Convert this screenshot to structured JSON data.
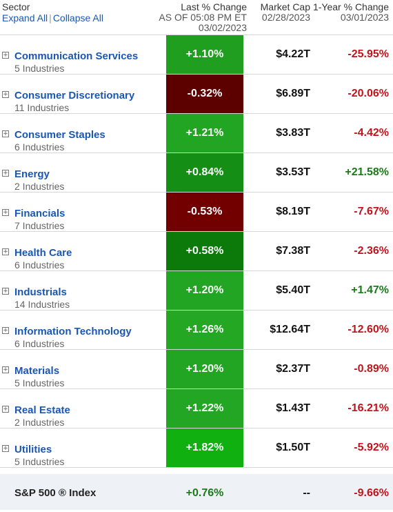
{
  "header": {
    "sector_title": "Sector",
    "expand_all": "Expand All",
    "collapse_all": "Collapse All",
    "change_title": "Last % Change",
    "change_asof": "AS OF 05:08 PM ET",
    "change_date": "03/02/2023",
    "mcap_title": "Market Cap",
    "mcap_date": "02/28/2023",
    "year_title": "1-Year % Change",
    "year_date": "03/01/2023"
  },
  "colors": {
    "link": "#1a56b4",
    "negative_text": "#c0131b",
    "positive_text": "#1a7a1a"
  },
  "rows": [
    {
      "name": "Communication Services",
      "industries": "5 Industries",
      "change": "+1.10%",
      "change_color": "#1f9e1f",
      "mcap": "$4.22T",
      "year": "-25.95%",
      "year_sign": "neg"
    },
    {
      "name": "Consumer Discretionary",
      "industries": "11 Industries",
      "change": "-0.32%",
      "change_color": "#5c0000",
      "mcap": "$6.89T",
      "year": "-20.06%",
      "year_sign": "neg"
    },
    {
      "name": "Consumer Staples",
      "industries": "6 Industries",
      "change": "+1.21%",
      "change_color": "#22a522",
      "mcap": "$3.83T",
      "year": "-4.42%",
      "year_sign": "neg"
    },
    {
      "name": "Energy",
      "industries": "2 Industries",
      "change": "+0.84%",
      "change_color": "#158e15",
      "mcap": "$3.53T",
      "year": "+21.58%",
      "year_sign": "pos"
    },
    {
      "name": "Financials",
      "industries": "7 Industries",
      "change": "-0.53%",
      "change_color": "#720000",
      "mcap": "$8.19T",
      "year": "-7.67%",
      "year_sign": "neg"
    },
    {
      "name": "Health Care",
      "industries": "6 Industries",
      "change": "+0.58%",
      "change_color": "#0b7a0b",
      "mcap": "$7.38T",
      "year": "-2.36%",
      "year_sign": "neg"
    },
    {
      "name": "Industrials",
      "industries": "14 Industries",
      "change": "+1.20%",
      "change_color": "#22a522",
      "mcap": "$5.40T",
      "year": "+1.47%",
      "year_sign": "pos"
    },
    {
      "name": "Information Technology",
      "industries": "6 Industries",
      "change": "+1.26%",
      "change_color": "#24a824",
      "mcap": "$12.64T",
      "year": "-12.60%",
      "year_sign": "neg"
    },
    {
      "name": "Materials",
      "industries": "5 Industries",
      "change": "+1.20%",
      "change_color": "#22a522",
      "mcap": "$2.37T",
      "year": "-0.89%",
      "year_sign": "neg"
    },
    {
      "name": "Real Estate",
      "industries": "2 Industries",
      "change": "+1.22%",
      "change_color": "#23a623",
      "mcap": "$1.43T",
      "year": "-16.21%",
      "year_sign": "neg"
    },
    {
      "name": "Utilities",
      "industries": "5 Industries",
      "change": "+1.82%",
      "change_color": "#0fb00f",
      "mcap": "$1.50T",
      "year": "-5.92%",
      "year_sign": "neg"
    }
  ],
  "total": {
    "name": "S&P 500 ® Index",
    "change": "+0.76%",
    "mcap": "--",
    "year": "-9.66%"
  }
}
